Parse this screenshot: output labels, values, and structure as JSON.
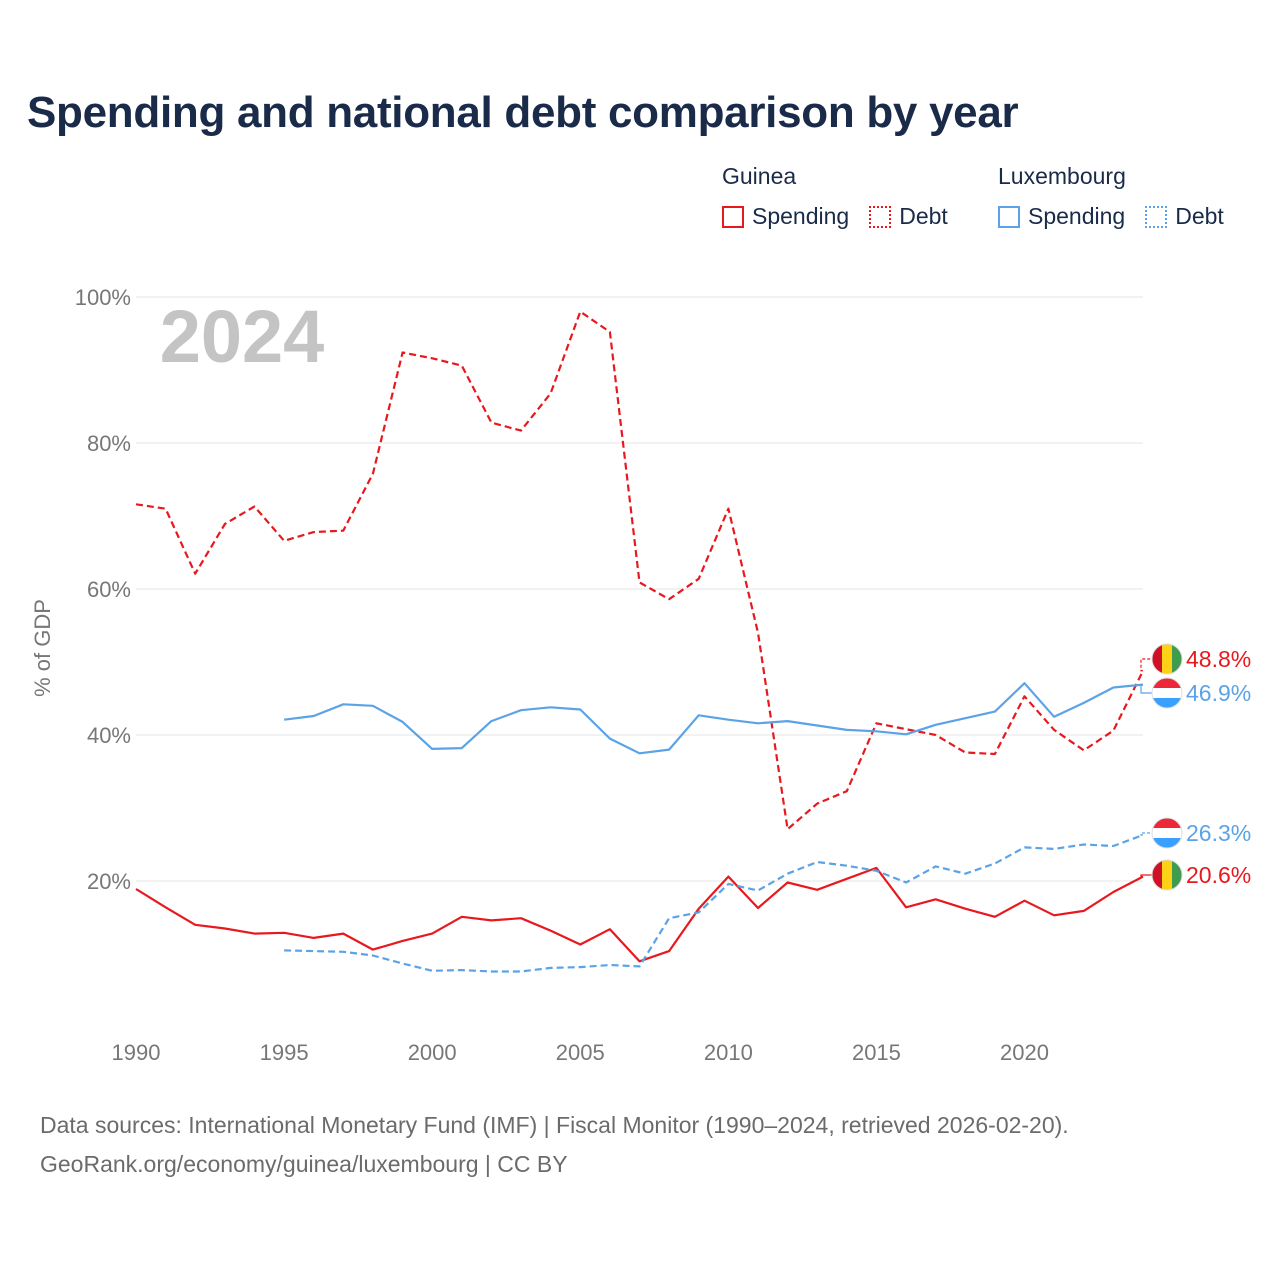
{
  "title": "Spending and national debt comparison by year",
  "legend": {
    "groups": [
      {
        "country": "Guinea",
        "spending_label": "Spending",
        "debt_label": "Debt",
        "color": "#e8191e"
      },
      {
        "country": "Luxembourg",
        "spending_label": "Spending",
        "debt_label": "Debt",
        "color": "#5ba3e6"
      }
    ]
  },
  "footer": {
    "line1": "Data sources: International Monetary Fund (IMF) | Fiscal Monitor (1990–2024, retrieved 2026-02-20).",
    "line2": "GeoRank.org/economy/guinea/luxembourg | CC BY"
  },
  "chart_data": {
    "type": "line",
    "title": "Spending and national debt comparison by year",
    "ylabel": "% of GDP",
    "xlabel": "",
    "year_label": "2024",
    "xlim": [
      1990,
      2024
    ],
    "ylim": [
      0,
      100
    ],
    "x_ticks": [
      1990,
      1995,
      2000,
      2005,
      2010,
      2015,
      2020
    ],
    "y_ticks": [
      20,
      40,
      60,
      80,
      100
    ],
    "y_tick_labels": [
      "20%",
      "40%",
      "60%",
      "80%",
      "100%"
    ],
    "grid": true,
    "series": [
      {
        "name": "Guinea Debt",
        "country": "Guinea",
        "metric": "Debt",
        "color": "#e8191e",
        "dash": true,
        "start_year": 1990,
        "values": [
          71.6,
          71.0,
          62.1,
          68.9,
          71.3,
          66.6,
          67.8,
          68.0,
          75.8,
          92.4,
          91.6,
          90.6,
          82.8,
          81.7,
          86.8,
          98.0,
          95.2,
          60.9,
          58.6,
          61.4,
          71.0,
          54.0,
          27.1,
          30.6,
          32.3,
          41.6,
          40.8,
          40.0,
          37.6,
          37.4,
          45.3,
          40.7,
          37.9,
          40.6,
          48.8
        ]
      },
      {
        "name": "Guinea Spending",
        "country": "Guinea",
        "metric": "Spending",
        "color": "#e8191e",
        "dash": false,
        "start_year": 1990,
        "values": [
          18.9,
          16.4,
          14.0,
          13.5,
          12.8,
          12.9,
          12.2,
          12.8,
          10.6,
          11.8,
          12.8,
          15.1,
          14.6,
          14.9,
          13.2,
          11.3,
          13.4,
          9.0,
          10.4,
          16.2,
          20.6,
          16.3,
          19.8,
          18.8,
          20.3,
          21.8,
          16.4,
          17.5,
          16.2,
          15.1,
          17.3,
          15.3,
          15.9,
          18.5,
          20.6
        ]
      },
      {
        "name": "Luxembourg Spending",
        "country": "Luxembourg",
        "metric": "Spending",
        "color": "#5ba3e6",
        "dash": false,
        "start_year": 1995,
        "values": [
          42.1,
          42.6,
          44.2,
          44.0,
          41.8,
          38.1,
          38.2,
          41.9,
          43.4,
          43.8,
          43.5,
          39.5,
          37.5,
          38.0,
          42.7,
          42.1,
          41.6,
          41.9,
          41.3,
          40.7,
          40.5,
          40.1,
          41.4,
          42.3,
          43.2,
          47.1,
          42.5,
          44.4,
          46.5,
          46.9
        ]
      },
      {
        "name": "Luxembourg Debt",
        "country": "Luxembourg",
        "metric": "Debt",
        "color": "#5ba3e6",
        "dash": true,
        "start_year": 1995,
        "values": [
          10.5,
          10.4,
          10.3,
          9.8,
          8.7,
          7.7,
          7.8,
          7.6,
          7.6,
          8.1,
          8.2,
          8.5,
          8.3,
          14.9,
          15.7,
          19.6,
          18.7,
          21.0,
          22.6,
          22.1,
          21.4,
          19.8,
          22.0,
          21.0,
          22.4,
          24.6,
          24.4,
          25.0,
          24.8,
          26.3
        ]
      }
    ],
    "end_labels": [
      {
        "series": "Guinea Debt",
        "text": "48.8%",
        "flag": "guinea-flag",
        "color": "#e8191e"
      },
      {
        "series": "Luxembourg Spending",
        "text": "46.9%",
        "flag": "luxembourg-flag",
        "color": "#5ba3e6"
      },
      {
        "series": "Luxembourg Debt",
        "text": "26.3%",
        "flag": "luxembourg-flag",
        "color": "#5ba3e6"
      },
      {
        "series": "Guinea Spending",
        "text": "20.6%",
        "flag": "guinea-flag",
        "color": "#e8191e"
      }
    ]
  }
}
